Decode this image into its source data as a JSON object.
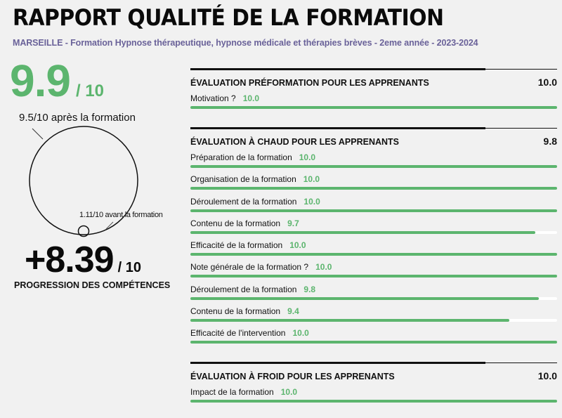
{
  "header": {
    "title": "RAPPORT QUALITÉ DE LA FORMATION",
    "subtitle": "MARSEILLE - Formation Hypnose thérapeutique, hypnose médicale et thérapies brèves - 2eme année - 2023-2024"
  },
  "summary": {
    "overall_score": "9.9",
    "overall_out_of": "/ 10",
    "after_label": "9.5/10 après la formation",
    "before_label": "1.11/10 avant la formation",
    "progression_value": "+8.39",
    "progression_out_of": "/ 10",
    "progression_label": "PROGRESSION DES COMPÉTENCES"
  },
  "colors": {
    "accent_green": "#5cb56e",
    "subtitle_purple": "#6a6299",
    "background": "#f1f1f1"
  },
  "sections": [
    {
      "title": "ÉVALUATION PRÉFORMATION POUR LES APPRENANTS",
      "score": "10.0",
      "items": [
        {
          "label": "Motivation ?",
          "value": "10.0",
          "pct": 100
        }
      ]
    },
    {
      "title": "ÉVALUATION À CHAUD POUR LES APPRENANTS",
      "score": "9.8",
      "items": [
        {
          "label": "Préparation de la formation",
          "value": "10.0",
          "pct": 100
        },
        {
          "label": "Organisation de la formation",
          "value": "10.0",
          "pct": 100
        },
        {
          "label": "Déroulement de la formation",
          "value": "10.0",
          "pct": 100
        },
        {
          "label": "Contenu de la formation",
          "value": "9.7",
          "pct": 94
        },
        {
          "label": "Efficacité de la formation",
          "value": "10.0",
          "pct": 100
        },
        {
          "label": "Note générale de la formation ?",
          "value": "10.0",
          "pct": 100
        },
        {
          "label": "Déroulement de la formation",
          "value": "9.8",
          "pct": 95
        },
        {
          "label": "Contenu de la formation",
          "value": "9.4",
          "pct": 87
        },
        {
          "label": "Efficacité de l'intervention",
          "value": "10.0",
          "pct": 100
        }
      ]
    },
    {
      "title": "ÉVALUATION À FROID POUR LES APPRENANTS",
      "score": "10.0",
      "items": [
        {
          "label": "Impact de la formation",
          "value": "10.0",
          "pct": 100
        }
      ]
    }
  ]
}
